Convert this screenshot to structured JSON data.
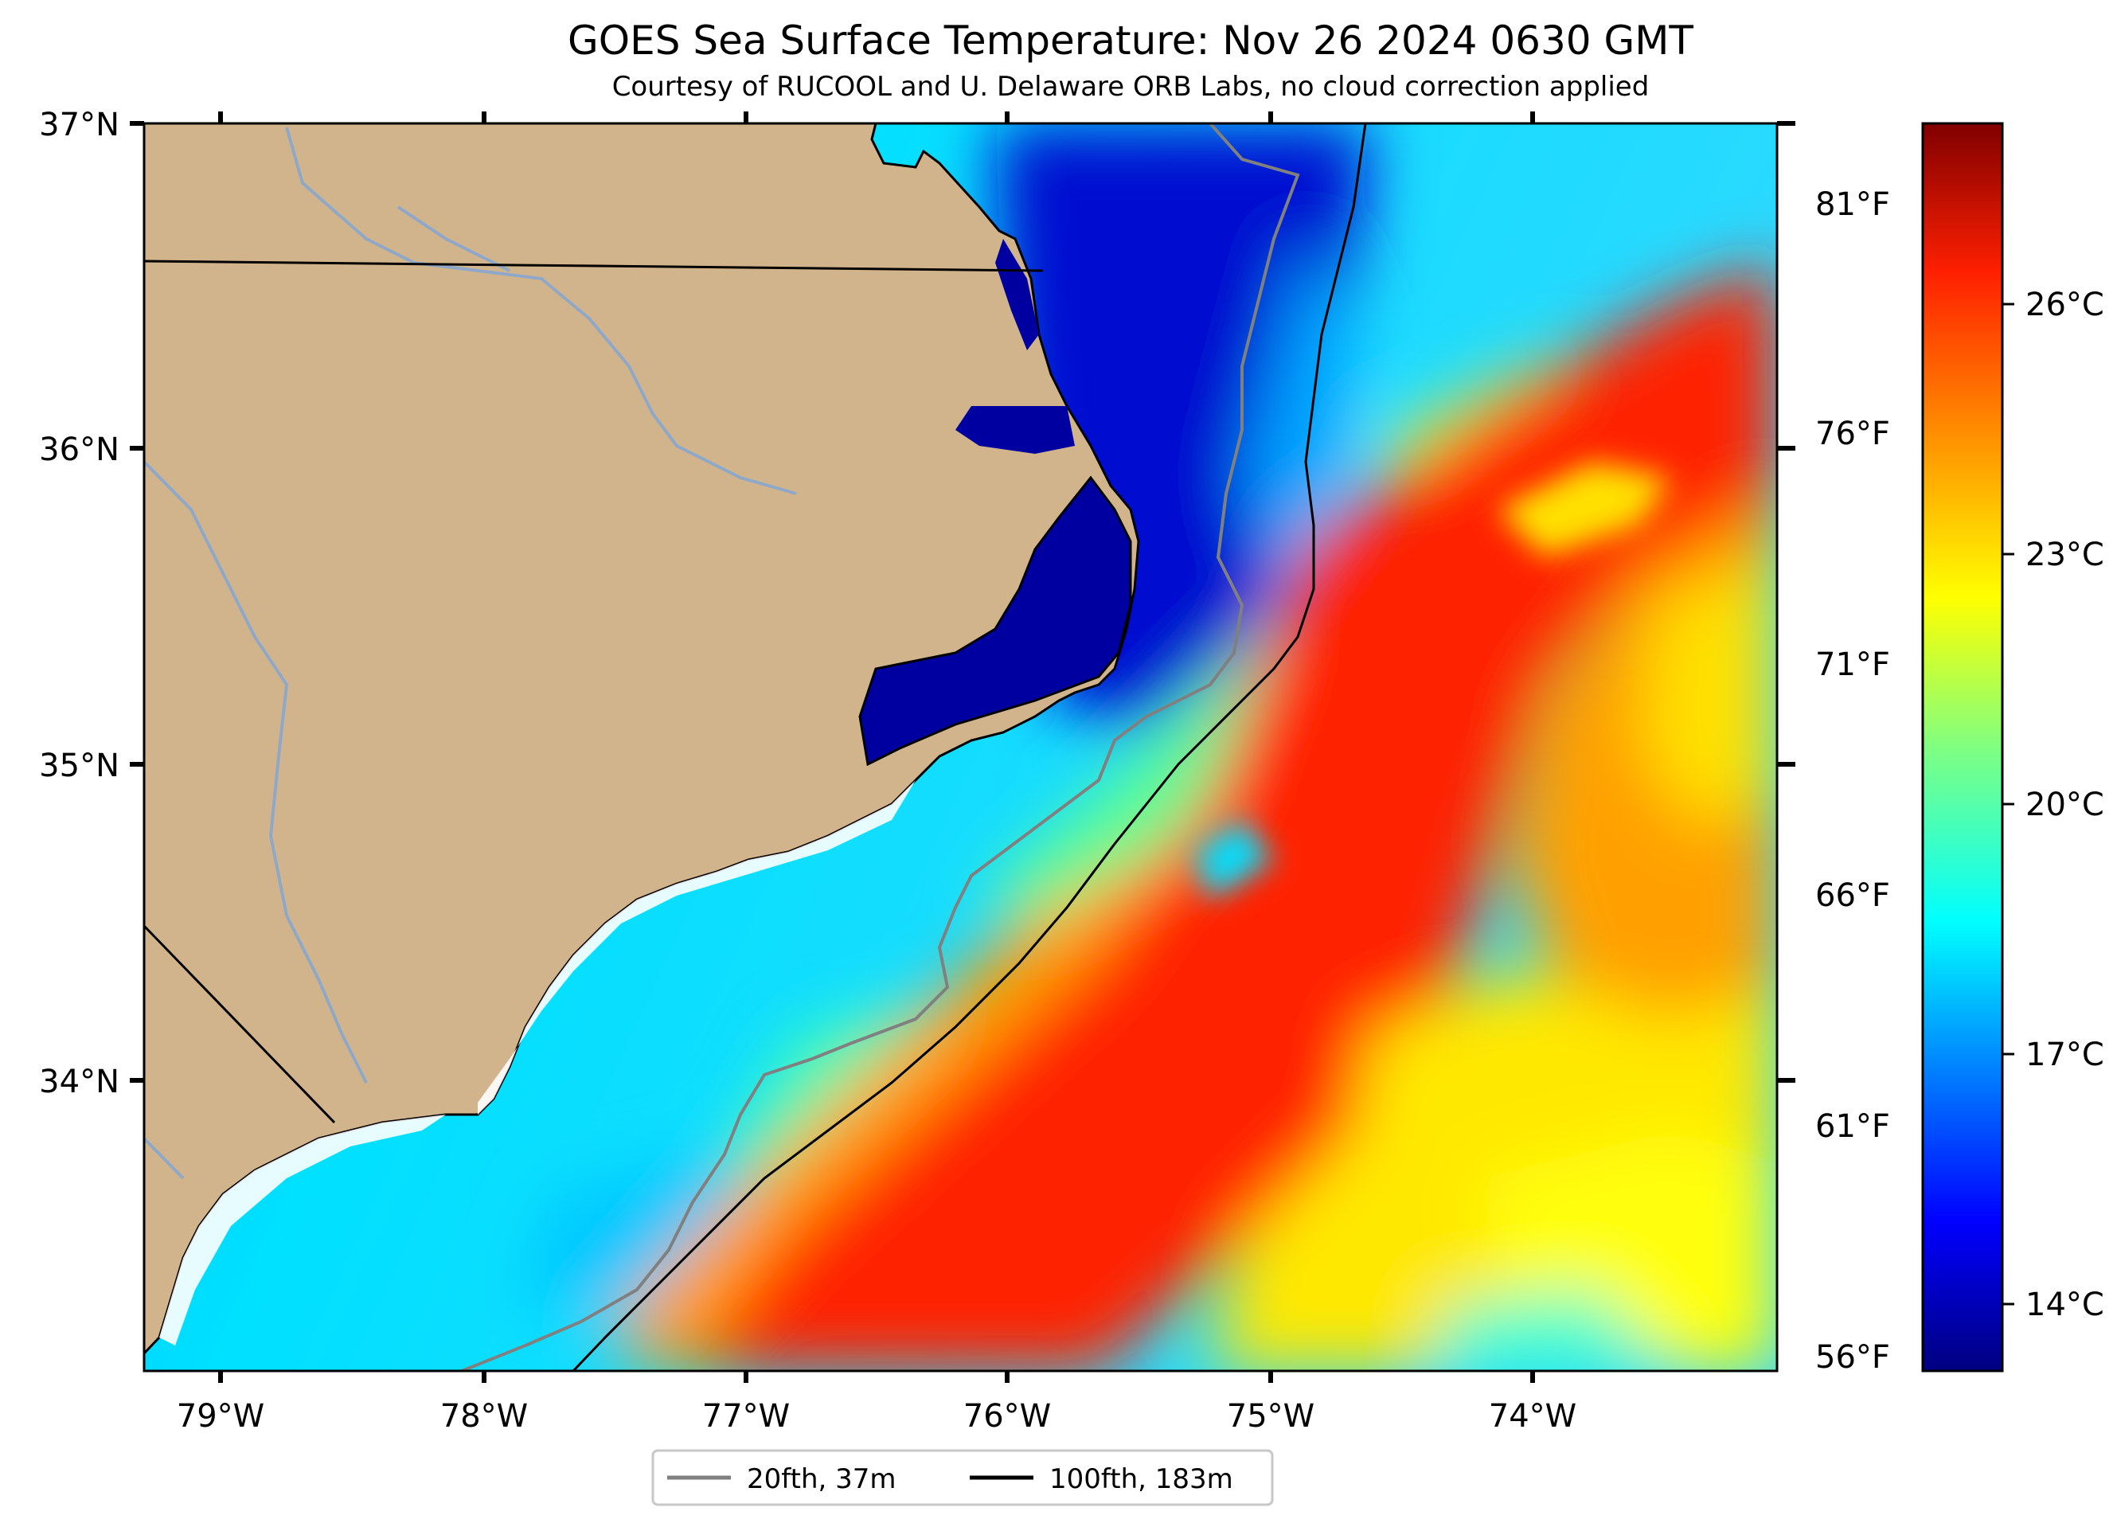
{
  "title": "GOES Sea Surface Temperature: Nov 26 2024 0630 GMT",
  "subtitle": "Courtesy of RUCOOL and U. Delaware ORB Labs, no cloud correction applied",
  "lat_labels": [
    "37°N",
    "36°N",
    "35°N",
    "34°N"
  ],
  "lon_labels": [
    "79°W",
    "78°W",
    "77°W",
    "76°W",
    "75°W",
    "74°W"
  ],
  "fahrenheit_labels": [
    "81°F",
    "76°F",
    "71°F",
    "66°F",
    "61°F",
    "56°F"
  ],
  "colorbar": {
    "labels": [
      "26°C",
      "23°C",
      "20°C",
      "17°C",
      "14°C"
    ],
    "colormap": "jet",
    "stops": [
      "#000080",
      "#0000ff",
      "#00a0ff",
      "#00ffff",
      "#80ff80",
      "#ffff00",
      "#ffa000",
      "#ff2000",
      "#800000"
    ]
  },
  "legend": {
    "items": [
      {
        "label": "20fth, 37m",
        "color": "#808080"
      },
      {
        "label": "100fth, 183m",
        "color": "#000000"
      }
    ]
  },
  "colors": {
    "land": "#D2B48C",
    "river": "#8fa8c8",
    "cold_sound": "#0000a0",
    "gulf_stream": "#ff2a00"
  }
}
